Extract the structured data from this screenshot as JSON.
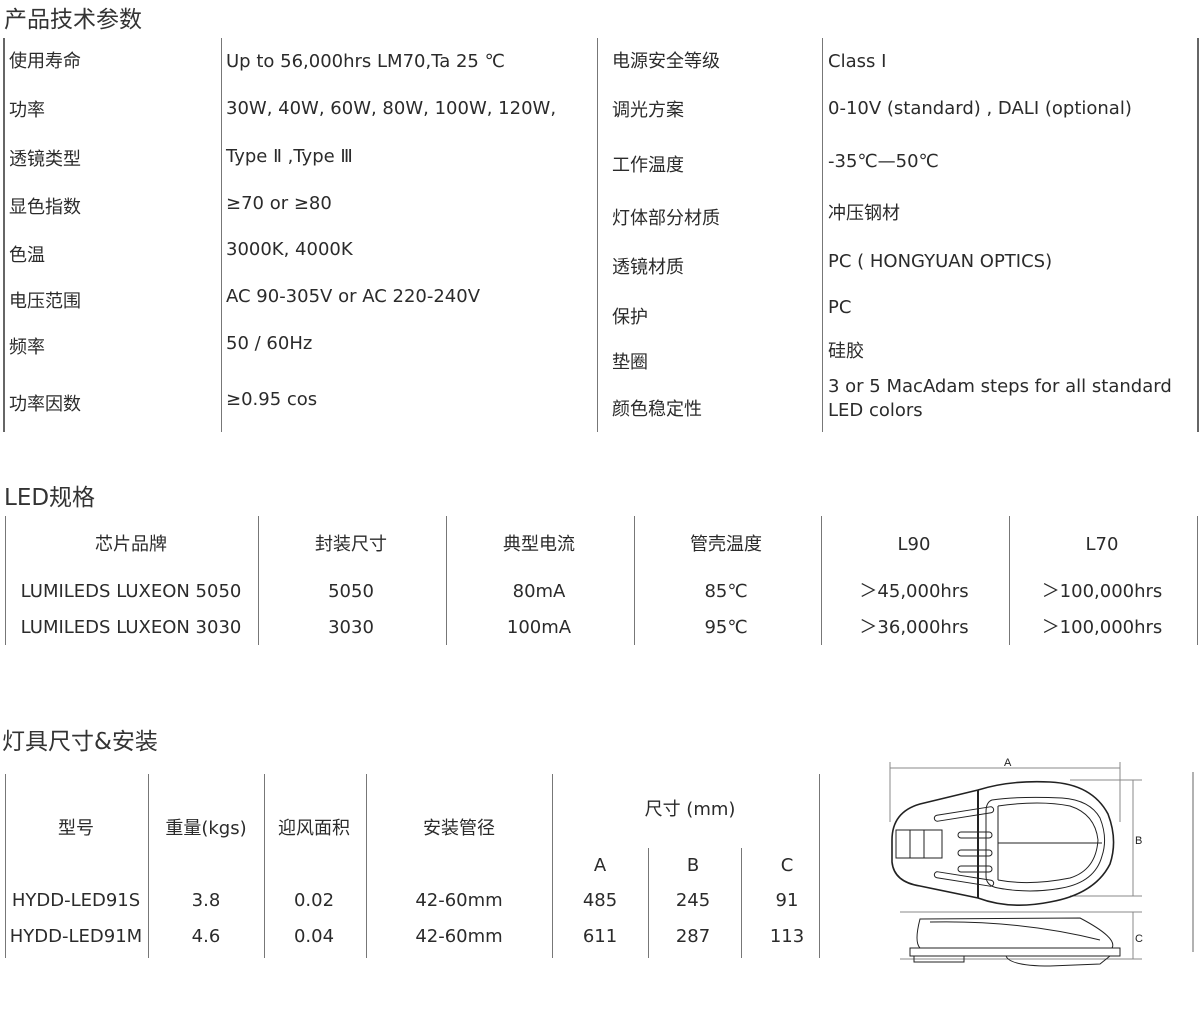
{
  "sections": {
    "tech_title": "产品技术参数",
    "led_title": "LED规格",
    "fixture_title": "灯具尺寸&安装"
  },
  "tech_params": {
    "left": [
      {
        "label": "使用寿命",
        "value": "Up to 56,000hrs LM70,Ta 25 ℃"
      },
      {
        "label": "功率",
        "value": "30W, 40W, 60W, 80W, 100W, 120W,"
      },
      {
        "label": "透镜类型",
        "value": " Type Ⅱ ,Type Ⅲ"
      },
      {
        "label": "显色指数",
        "value": "≥70 or ≥80"
      },
      {
        "label": "色温",
        "value": "3000K, 4000K"
      },
      {
        "label": "电压范围",
        "value": "AC 90-305V or AC 220-240V"
      },
      {
        "label": "频率",
        "value": "50 / 60Hz"
      },
      {
        "label": "功率因数",
        "value": "≥0.95 cos"
      }
    ],
    "right": [
      {
        "label": "电源安全等级",
        "value": "Class I"
      },
      {
        "label": "调光方案",
        "value": "0-10V (standard) , DALI (optional)"
      },
      {
        "label": "工作温度",
        "value": "-35℃—50℃"
      },
      {
        "label": "灯体部分材质",
        "value": "冲压钢材"
      },
      {
        "label": "透镜材质",
        "value": "PC ( HONGYUAN OPTICS)"
      },
      {
        "label": "保护",
        "value": "PC"
      },
      {
        "label": "垫圈",
        "value": "硅胶"
      },
      {
        "label": "颜色稳定性",
        "value": "3 or 5 MacAdam steps for all standard",
        "value2": "LED colors"
      }
    ]
  },
  "led_table": {
    "headers": [
      "芯片品牌",
      "封装尺寸",
      "典型电流",
      "管壳温度",
      "L90",
      "L70"
    ],
    "rows": [
      [
        "LUMILEDS LUXEON 5050",
        "5050",
        "80mA",
        "85℃",
        "＞45,000hrs",
        "＞100,000hrs"
      ],
      [
        "LUMILEDS LUXEON 3030",
        "3030",
        "100mA",
        "95℃",
        "＞36,000hrs",
        "＞100,000hrs"
      ]
    ]
  },
  "fixture_table": {
    "headers": [
      "型号",
      "重量(kgs)",
      "迎风面积",
      "安装管径"
    ],
    "dim_header": "尺寸 (mm)",
    "dim_sub": [
      "A",
      "B",
      "C"
    ],
    "rows": [
      [
        "HYDD-LED91S",
        "3.8",
        "0.02",
        "42-60mm",
        "485",
        "245",
        "91"
      ],
      [
        "HYDD-LED91M",
        "4.6",
        "0.04",
        "42-60mm",
        "611",
        "287",
        "113"
      ]
    ]
  },
  "drawing": {
    "label_a": "A",
    "label_b": "B",
    "label_c": "C"
  }
}
